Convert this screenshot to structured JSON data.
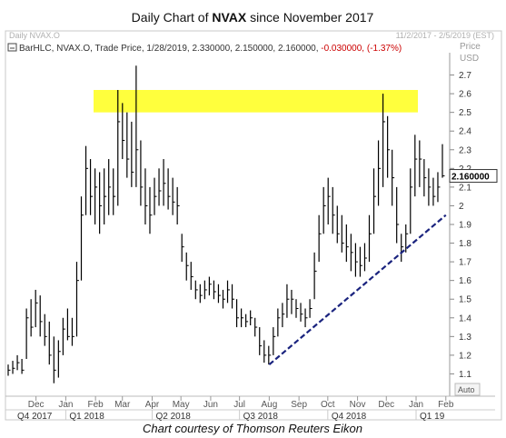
{
  "title_prefix": "Daily Chart of ",
  "title_ticker": "NVAX",
  "title_suffix": " since November 2017",
  "panel_name": "Daily NVAX.O",
  "date_range": "11/2/2017 - 2/5/2019 (EST)",
  "legend_text": "BarHLC, NVAX.O, Trade Price, 1/28/2019, 2.330000, 2.150000, 2.160000, ",
  "legend_change": "-0.030000, (-1.37%)",
  "axis_header_1": "Price",
  "axis_header_2": "USD",
  "price_flag": "2.160000",
  "auto_label": "Auto",
  "footer": "Chart courtesy of Thomson Reuters Eikon",
  "colors": {
    "highlight": "#ffff33",
    "trendline": "#1a237e",
    "down_change": "#cc0000",
    "bars": "#000000"
  },
  "chart_data": {
    "type": "bar",
    "subtype": "ohlc-hlc",
    "y_ticks": [
      "2.7",
      "2.6",
      "2.5",
      "2.4",
      "2.3",
      "2.2",
      "2.1",
      "2",
      "1.9",
      "1.8",
      "1.7",
      "1.6",
      "1.5",
      "1.4",
      "1.3",
      "1.2",
      "1.1"
    ],
    "ylim": [
      1.0,
      2.8
    ],
    "months": [
      "Dec",
      "Jan",
      "Feb",
      "Mar",
      "Apr",
      "May",
      "Jun",
      "Jul",
      "Aug",
      "Sep",
      "Oct",
      "Nov",
      "Dec",
      "Jan",
      "Feb"
    ],
    "quarters": [
      "Q4 2017",
      "Q1 2018",
      "Q2 2018",
      "Q3 2018",
      "Q4 2018",
      "Q1 19"
    ],
    "resistance_zone": [
      2.5,
      2.62
    ],
    "trendline_endpoints": [
      {
        "date": "2018-08-01",
        "price": 1.15
      },
      {
        "date": "2019-02-01",
        "price": 1.95
      }
    ],
    "series": [
      {
        "hlc": [
          [
            1.15,
            1.09,
            1.12
          ],
          [
            1.17,
            1.1,
            1.13
          ],
          [
            1.2,
            1.12,
            1.16
          ],
          [
            1.18,
            1.1,
            1.12
          ],
          [
            1.45,
            1.18,
            1.4
          ],
          [
            1.5,
            1.3,
            1.35
          ],
          [
            1.55,
            1.35,
            1.48
          ],
          [
            1.52,
            1.3,
            1.38
          ],
          [
            1.42,
            1.25,
            1.3
          ],
          [
            1.38,
            1.15,
            1.2
          ],
          [
            1.3,
            1.05,
            1.12
          ],
          [
            1.28,
            1.08,
            1.22
          ],
          [
            1.4,
            1.2,
            1.34
          ],
          [
            1.45,
            1.28,
            1.3
          ],
          [
            1.4,
            1.25,
            1.3
          ],
          [
            1.7,
            1.3,
            1.6
          ],
          [
            2.05,
            1.6,
            1.95
          ],
          [
            2.32,
            1.95,
            2.2
          ],
          [
            2.25,
            1.95,
            2.05
          ],
          [
            2.2,
            1.9,
            2.1
          ],
          [
            2.18,
            1.85,
            2.0
          ],
          [
            2.2,
            1.9,
            2.05
          ],
          [
            2.25,
            1.95,
            2.1
          ],
          [
            2.2,
            1.95,
            2.05
          ],
          [
            2.62,
            2.0,
            2.45
          ],
          [
            2.55,
            2.25,
            2.35
          ],
          [
            2.5,
            2.15,
            2.25
          ],
          [
            2.45,
            2.1,
            2.18
          ],
          [
            2.75,
            2.1,
            2.3
          ],
          [
            2.35,
            2.0,
            2.1
          ],
          [
            2.2,
            1.9,
            2.0
          ],
          [
            2.1,
            1.85,
            1.95
          ],
          [
            2.15,
            1.95,
            2.05
          ],
          [
            2.2,
            2.0,
            2.08
          ],
          [
            2.25,
            2.0,
            2.12
          ],
          [
            2.2,
            1.98,
            2.05
          ],
          [
            2.15,
            1.95,
            2.02
          ],
          [
            2.1,
            1.9,
            2.0
          ],
          [
            1.85,
            1.7,
            1.78
          ],
          [
            1.75,
            1.6,
            1.68
          ],
          [
            1.7,
            1.55,
            1.62
          ],
          [
            1.6,
            1.5,
            1.55
          ],
          [
            1.58,
            1.48,
            1.52
          ],
          [
            1.6,
            1.5,
            1.55
          ],
          [
            1.62,
            1.52,
            1.58
          ],
          [
            1.6,
            1.5,
            1.54
          ],
          [
            1.58,
            1.48,
            1.52
          ],
          [
            1.55,
            1.45,
            1.5
          ],
          [
            1.6,
            1.48,
            1.55
          ],
          [
            1.58,
            1.45,
            1.5
          ],
          [
            1.5,
            1.35,
            1.4
          ],
          [
            1.45,
            1.35,
            1.4
          ],
          [
            1.42,
            1.35,
            1.38
          ],
          [
            1.44,
            1.36,
            1.4
          ],
          [
            1.4,
            1.3,
            1.35
          ],
          [
            1.35,
            1.2,
            1.25
          ],
          [
            1.28,
            1.16,
            1.2
          ],
          [
            1.25,
            1.15,
            1.2
          ],
          [
            1.35,
            1.2,
            1.3
          ],
          [
            1.45,
            1.3,
            1.4
          ],
          [
            1.48,
            1.35,
            1.42
          ],
          [
            1.58,
            1.4,
            1.5
          ],
          [
            1.55,
            1.42,
            1.5
          ],
          [
            1.5,
            1.4,
            1.45
          ],
          [
            1.48,
            1.38,
            1.42
          ],
          [
            1.45,
            1.35,
            1.4
          ],
          [
            1.5,
            1.4,
            1.45
          ],
          [
            1.75,
            1.5,
            1.65
          ],
          [
            1.95,
            1.7,
            1.85
          ],
          [
            2.1,
            1.85,
            2.0
          ],
          [
            2.15,
            1.9,
            2.05
          ],
          [
            2.1,
            1.85,
            1.95
          ],
          [
            2.0,
            1.8,
            1.85
          ],
          [
            1.95,
            1.75,
            1.8
          ],
          [
            1.9,
            1.7,
            1.78
          ],
          [
            1.85,
            1.65,
            1.75
          ],
          [
            1.8,
            1.62,
            1.7
          ],
          [
            1.78,
            1.62,
            1.68
          ],
          [
            1.8,
            1.65,
            1.72
          ],
          [
            1.95,
            1.7,
            1.85
          ],
          [
            2.2,
            1.85,
            2.05
          ],
          [
            2.35,
            2.0,
            2.2
          ],
          [
            2.6,
            2.1,
            2.45
          ],
          [
            2.48,
            2.15,
            2.3
          ],
          [
            2.3,
            2.0,
            2.15
          ],
          [
            2.1,
            1.8,
            1.9
          ],
          [
            1.85,
            1.7,
            1.78
          ],
          [
            1.9,
            1.75,
            1.85
          ],
          [
            2.2,
            1.85,
            2.1
          ],
          [
            2.38,
            2.05,
            2.25
          ],
          [
            2.35,
            2.1,
            2.25
          ],
          [
            2.25,
            2.05,
            2.15
          ],
          [
            2.2,
            2.0,
            2.1
          ],
          [
            2.15,
            2.0,
            2.05
          ],
          [
            2.18,
            2.02,
            2.1
          ],
          [
            2.33,
            2.15,
            2.16
          ]
        ]
      }
    ]
  }
}
